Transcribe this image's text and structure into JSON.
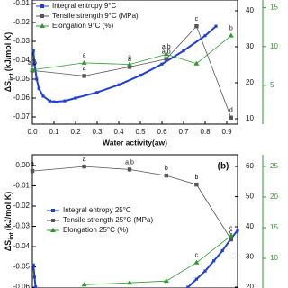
{
  "chart_data": [
    {
      "type": "line",
      "ylabel": {
        "main": "ΔS",
        "sub": "int",
        "unit": "(kJ/mol K)"
      },
      "xlabel": "Water activity(aw)",
      "xlim": [
        0,
        0.95
      ],
      "xticks": [
        {
          "value": 0,
          "label": "0.0"
        },
        0.1,
        0.2,
        0.3,
        0.4,
        0.5,
        0.6,
        0.7,
        0.8,
        0.9
      ],
      "ylim": [
        -0.0738,
        -0.0081
      ],
      "yticks": [
        -0.01,
        -0.02,
        -0.03,
        -0.04,
        -0.05,
        -0.06,
        -0.07
      ],
      "y2lim": [
        8.5,
        43
      ],
      "y2ticks": [
        10,
        20,
        30,
        40
      ],
      "y3lim": [
        0,
        16
      ],
      "y3ticks": [
        5,
        10,
        15
      ],
      "series": [
        {
          "name": "Integral entropy 9°C",
          "color": "#1f3fd6",
          "marker": "square",
          "axis": "y",
          "x": [
            0.005,
            0.01,
            0.02,
            0.03,
            0.05,
            0.08,
            0.1,
            0.15,
            0.2,
            0.3,
            0.4,
            0.5,
            0.6,
            0.7,
            0.8,
            0.85
          ],
          "values": [
            -0.035,
            -0.042,
            -0.05,
            -0.055,
            -0.059,
            -0.0615,
            -0.062,
            -0.0615,
            -0.06,
            -0.057,
            -0.053,
            -0.048,
            -0.042,
            -0.035,
            -0.027,
            -0.022
          ]
        },
        {
          "name": "Tensile strength 9°C (MPa)",
          "color": "#555555",
          "marker": "square",
          "axis": "y2",
          "x": [
            0,
            0.24,
            0.45,
            0.62,
            0.76,
            0.92
          ],
          "values": [
            23.4,
            21.9,
            24.4,
            26.6,
            35.7,
            10.3
          ],
          "letters": [
            "a,b",
            "a",
            "a",
            "a,b",
            "c",
            "d"
          ]
        },
        {
          "name": "Elongation 9°C (%)",
          "color": "#2e9a2e",
          "marker": "triangle",
          "axis": "y3",
          "x": [
            0,
            0.24,
            0.45,
            0.62,
            0.76,
            0.92
          ],
          "values": [
            7.0,
            7.9,
            7.7,
            9.0,
            7.8,
            11.4
          ],
          "letters": [
            null,
            "a",
            "a",
            "a,b",
            null,
            "b"
          ]
        }
      ]
    },
    {
      "type": "line",
      "ylabel": {
        "main": "ΔS",
        "sub": "int",
        "unit": "(kJ/mol K)"
      },
      "panel_label": "(b)",
      "xlim": [
        0,
        0.95
      ],
      "ylim": [
        -0.0604,
        0.0053
      ],
      "yticks": [
        {
          "value": 0,
          "label": "0.00"
        },
        -0.01,
        -0.02,
        -0.03,
        -0.04,
        -0.05,
        -0.06
      ],
      "y2lim": [
        19.7,
        63.9
      ],
      "y2ticks": [
        20,
        30,
        40,
        50,
        60
      ],
      "y3lim": [
        5.15,
        26.9
      ],
      "y3ticks": [
        10,
        15,
        20,
        25
      ],
      "series": [
        {
          "name": "Integral entropy 25°C",
          "color": "#1f3fd6",
          "marker": "square",
          "axis": "y",
          "x": [
            0.005,
            0.01,
            0.015,
            0.5,
            0.72,
            0.76,
            0.8,
            0.84,
            0.88,
            0.92,
            0.95
          ],
          "values": [
            -0.049,
            -0.055,
            -0.06,
            null,
            -0.06,
            -0.056,
            -0.052,
            -0.047,
            -0.042,
            -0.036,
            -0.032
          ]
        },
        {
          "name": "Tensile strength 25°C (MPa)",
          "color": "#555555",
          "marker": "square",
          "axis": "y2",
          "x": [
            0,
            0.24,
            0.45,
            0.62,
            0.76,
            0.92
          ],
          "values": [
            58.5,
            60,
            59,
            57,
            54,
            35.8
          ],
          "letters": [
            "a",
            "a",
            "a,b",
            "b",
            "b",
            "c"
          ]
        },
        {
          "name": "Elongation 25°C (%)",
          "color": "#2e9a2e",
          "marker": "triangle",
          "axis": "y3",
          "x": [
            0.24,
            0.45,
            0.62,
            0.76,
            0.92
          ],
          "values": [
            5.7,
            6.0,
            6.3,
            9.3,
            13.7
          ],
          "letters": [
            null,
            null,
            null,
            "c",
            "c"
          ]
        }
      ]
    }
  ]
}
